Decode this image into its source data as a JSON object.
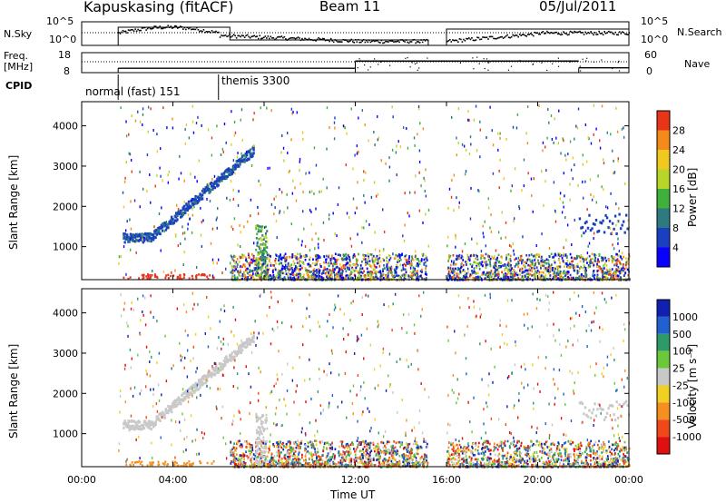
{
  "header": {
    "station": "Kapuskasing (fitACF)",
    "beam": "Beam 11",
    "date": "05/Jul/2011"
  },
  "side_labels": {
    "nsky": "N.Sky",
    "freq_line1": "Freq.",
    "freq_line2": "[MHz]",
    "cpid": "CPID",
    "nsearch": "N.Search",
    "nave": "Nave",
    "nsky_ticks": [
      "10^5",
      "10^0"
    ],
    "freq_ticks": [
      "18",
      "8"
    ],
    "nave_ticks": [
      "60",
      "0"
    ],
    "nsearch_ticks": [
      "10^5",
      "10^0"
    ]
  },
  "cpid_modes": [
    {
      "label": "normal (fast) 151",
      "start_hour": 1.6,
      "end_hour": 6.0
    },
    {
      "label": "themis 3300",
      "start_hour": 6.0,
      "end_hour": 24.0
    }
  ],
  "chart_data": [
    {
      "type": "line",
      "panel": "noise",
      "x_range_hours": [
        0,
        24
      ],
      "gap_hours": [
        15.2,
        16.0
      ],
      "ylabel_left": "N.Sky",
      "ylabel_right": "N.Search"
    },
    {
      "type": "line",
      "panel": "frequency-nave",
      "x_range_hours": [
        0,
        24
      ],
      "freq_ylim": [
        8,
        18
      ],
      "nave_ylim": [
        0,
        60
      ],
      "freq_steps": [
        {
          "start": 1.6,
          "end": 12.0,
          "value": 10.2
        },
        {
          "start": 12.0,
          "end": 21.8,
          "value": 13.8
        },
        {
          "start": 21.8,
          "end": 24.0,
          "value": 10.4
        }
      ]
    },
    {
      "type": "heatmap",
      "panel": "power",
      "xlabel": "",
      "ylabel": "Slant Range [km]",
      "x_range_hours": [
        0,
        24
      ],
      "ylim": [
        180,
        4600
      ],
      "y_ticks": [
        1000,
        2000,
        3000,
        4000
      ],
      "colorbar": {
        "title": "Power [dB]",
        "ticks": [
          "4",
          "8",
          "12",
          "16",
          "20",
          "24",
          "28"
        ],
        "colors": [
          "#0a00ff",
          "#1a3fbf",
          "#2e7a7e",
          "#3fb03c",
          "#b8d62a",
          "#f0c81e",
          "#f58a1a",
          "#e8351a"
        ]
      }
    },
    {
      "type": "heatmap",
      "panel": "velocity",
      "xlabel": "Time UT",
      "ylabel": "Slant Range [km]",
      "x_range_hours": [
        0,
        24
      ],
      "ylim": [
        180,
        4600
      ],
      "y_ticks": [
        1000,
        2000,
        3000,
        4000
      ],
      "x_ticks": [
        "00:00",
        "04:00",
        "08:00",
        "12:00",
        "16:00",
        "20:00",
        "00:00"
      ],
      "colorbar": {
        "title": "Velocity [m s⁻¹]",
        "ticks": [
          "1000",
          "500",
          "100",
          "25",
          "-25",
          "-100",
          "-500",
          "-1000"
        ],
        "colors": [
          "#1020b0",
          "#2060d0",
          "#2e9a6a",
          "#6ac83a",
          "#c8c8c8",
          "#f0d020",
          "#f59020",
          "#f04818",
          "#e01010"
        ]
      }
    }
  ]
}
